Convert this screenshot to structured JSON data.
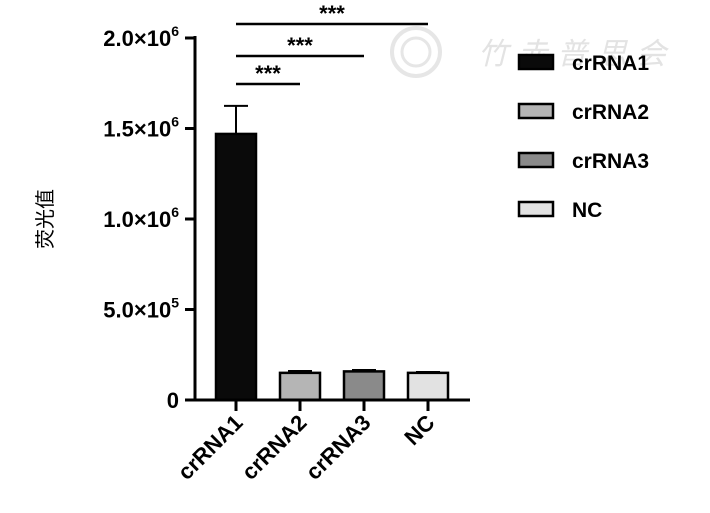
{
  "chart_data": {
    "type": "bar",
    "categories": [
      "crRNA1",
      "crRNA2",
      "crRNA3",
      "NC"
    ],
    "values": [
      1470000,
      150000,
      158000,
      150000
    ],
    "errors": [
      155000,
      10000,
      8000,
      5000
    ],
    "colors": [
      "#0a0a0a",
      "#b5b5b5",
      "#8a8a8a",
      "#e2e2e2"
    ],
    "ylabel": "荧光值",
    "ylim": [
      0,
      2000000
    ],
    "yticks": [
      {
        "value": 0,
        "mantissa": "0",
        "exp": ""
      },
      {
        "value": 500000,
        "mantissa": "5.0×10",
        "exp": "5"
      },
      {
        "value": 1000000,
        "mantissa": "1.0×10",
        "exp": "6"
      },
      {
        "value": 1500000,
        "mantissa": "1.5×10",
        "exp": "6"
      },
      {
        "value": 2000000,
        "mantissa": "2.0×10",
        "exp": "6"
      }
    ],
    "legend": {
      "placement": "right",
      "entries": [
        "crRNA1",
        "crRNA2",
        "crRNA3",
        "NC"
      ]
    },
    "significance": [
      {
        "from": "crRNA1",
        "to": "crRNA2",
        "label": "***"
      },
      {
        "from": "crRNA1",
        "to": "crRNA3",
        "label": "***"
      },
      {
        "from": "crRNA1",
        "to": "NC",
        "label": "***"
      }
    ],
    "grid": false
  },
  "watermark": {
    "text": "竹 赤 普 思 会",
    "icon": "seal-icon"
  }
}
